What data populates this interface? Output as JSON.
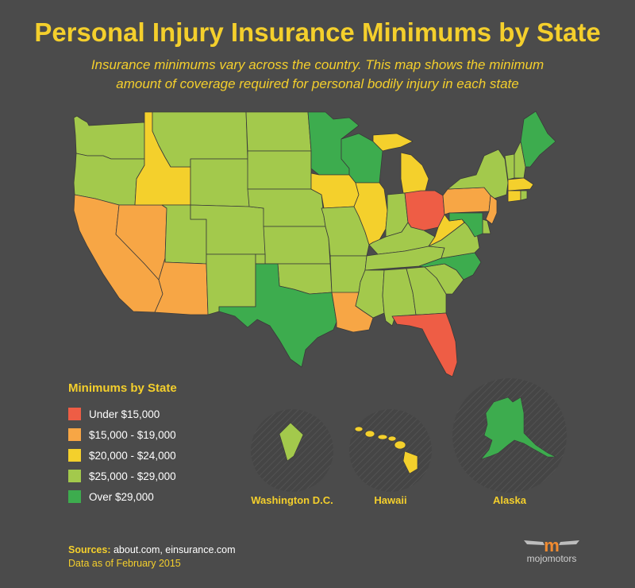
{
  "header": {
    "title": "Personal Injury Insurance Minimums by State",
    "subtitle_line1": "Insurance minimums vary across the country. This map shows the minimum",
    "subtitle_line2": "amount of coverage required for personal bodily injury in each state"
  },
  "legend": {
    "title": "Minimums by State",
    "items": [
      {
        "label": "Under $15,000",
        "color": "#ee5d45"
      },
      {
        "label": "$15,000 - $19,000",
        "color": "#f7a645"
      },
      {
        "label": "$20,000 - $24,000",
        "color": "#f4d02c"
      },
      {
        "label": "$25,000 - $29,000",
        "color": "#a3c94c"
      },
      {
        "label": "Over $29,000",
        "color": "#3dac4e"
      }
    ]
  },
  "insets": {
    "dc": "Washington D.C.",
    "hawaii": "Hawaii",
    "alaska": "Alaska"
  },
  "footer": {
    "sources_label": "Sources:",
    "sources_text": "about.com, einsurance.com",
    "as_of": "Data as of February 2015"
  },
  "logo": {
    "text": "mojomotors"
  },
  "state_tiers": {
    "WA": "25-29k",
    "OR": "25-29k",
    "CA": "15-19k",
    "NV": "15-19k",
    "ID": "20-24k",
    "MT": "25-29k",
    "WY": "25-29k",
    "UT": "25-29k",
    "AZ": "15-19k",
    "CO": "25-29k",
    "NM": "25-29k",
    "ND": "25-29k",
    "SD": "25-29k",
    "NE": "25-29k",
    "KS": "25-29k",
    "OK": "25-29k",
    "TX": "over-29k",
    "MN": "over-29k",
    "IA": "20-24k",
    "MO": "25-29k",
    "AR": "25-29k",
    "LA": "15-19k",
    "WI": "over-29k",
    "IL": "20-24k",
    "MI": "20-24k",
    "IN": "25-29k",
    "OH": "under-15k",
    "KY": "25-29k",
    "TN": "25-29k",
    "MS": "25-29k",
    "AL": "25-29k",
    "GA": "25-29k",
    "FL": "under-15k",
    "SC": "25-29k",
    "NC": "over-29k",
    "VA": "25-29k",
    "WV": "20-24k",
    "PA": "15-19k",
    "NY": "25-29k",
    "NJ": "15-19k",
    "DE": "25-29k",
    "MD": "over-29k",
    "CT": "20-24k",
    "RI": "25-29k",
    "MA": "20-24k",
    "VT": "25-29k",
    "NH": "25-29k",
    "ME": "over-29k",
    "DC": "25-29k",
    "HI": "20-24k",
    "AK": "over-29k"
  }
}
